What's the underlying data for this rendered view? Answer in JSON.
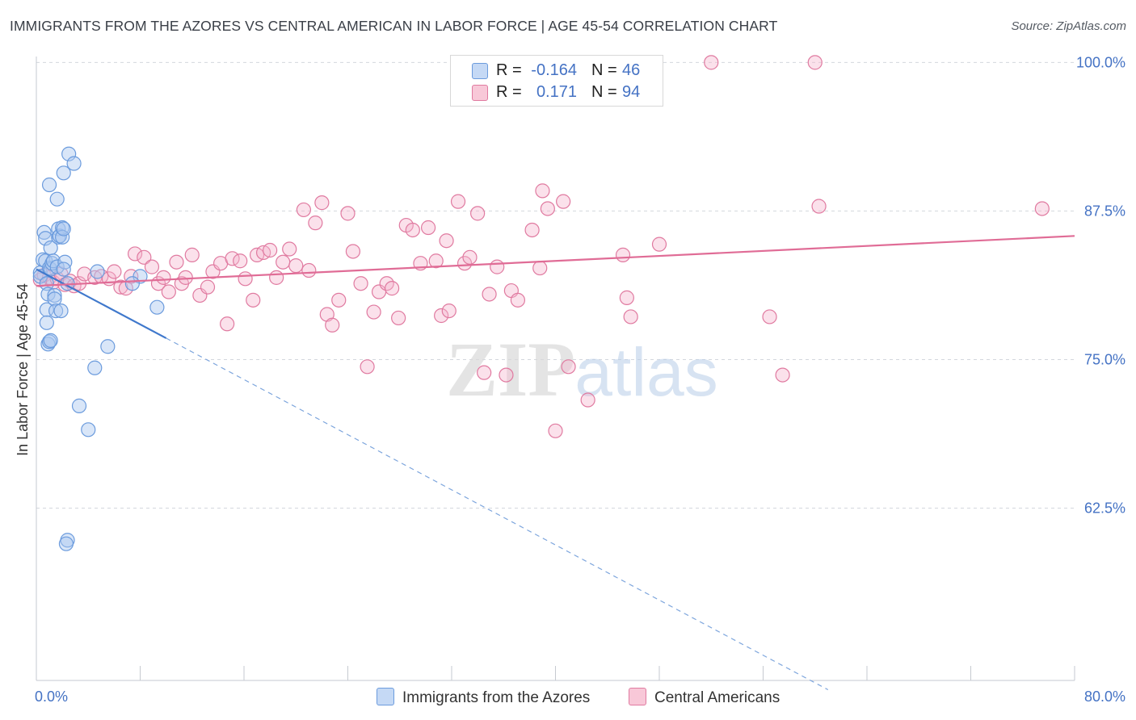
{
  "title": "IMMIGRANTS FROM THE AZORES VS CENTRAL AMERICAN IN LABOR FORCE | AGE 45-54 CORRELATION CHART",
  "source": "Source: ZipAtlas.com",
  "watermark": {
    "zip": "ZIP",
    "atlas": "atlas"
  },
  "legend": {
    "r_label": "R =",
    "n_label": "N =",
    "items": [
      {
        "name": "Immigrants from the Azores",
        "r": "-0.164",
        "n": "46",
        "color": "#6b9bdd",
        "fill": "#c5d9f5"
      },
      {
        "name": "Central Americans",
        "r": "0.171",
        "n": "94",
        "color": "#e07aa0",
        "fill": "#f8c8d8"
      }
    ]
  },
  "chart_data": {
    "type": "scatter",
    "xlabel": "",
    "ylabel": "In Labor Force | Age 45-54",
    "xlim": [
      0,
      80
    ],
    "ylim": [
      48,
      100.5
    ],
    "x_tick_labels": {
      "min": "0.0%",
      "max": "80.0%"
    },
    "y_ticks": [
      {
        "value": 100,
        "label": "100.0%"
      },
      {
        "value": 87.5,
        "label": "87.5%"
      },
      {
        "value": 75,
        "label": "75.0%"
      },
      {
        "value": 62.5,
        "label": "62.5%"
      }
    ],
    "series": [
      {
        "name": "Immigrants from the Azores",
        "color": "#6b9bdd",
        "trend": {
          "x0": 0,
          "y0": 82.6,
          "x1": 10,
          "y1": 76.8,
          "dash_to_x": 61
        },
        "points": [
          [
            0.3,
            82.3
          ],
          [
            0.3,
            82.0
          ],
          [
            0.5,
            83.4
          ],
          [
            0.6,
            85.7
          ],
          [
            0.7,
            85.2
          ],
          [
            0.7,
            83.3
          ],
          [
            0.8,
            81.4
          ],
          [
            0.8,
            79.2
          ],
          [
            0.8,
            78.1
          ],
          [
            0.9,
            76.3
          ],
          [
            0.9,
            80.5
          ],
          [
            1.0,
            82.7
          ],
          [
            1.1,
            84.4
          ],
          [
            1.1,
            82.6
          ],
          [
            1.2,
            83.1
          ],
          [
            1.3,
            83.3
          ],
          [
            1.4,
            80.4
          ],
          [
            1.4,
            80.1
          ],
          [
            1.5,
            79.1
          ],
          [
            1.6,
            82.8
          ],
          [
            1.7,
            86.0
          ],
          [
            1.7,
            85.3
          ],
          [
            1.8,
            85.4
          ],
          [
            1.9,
            79.1
          ],
          [
            2.0,
            86.1
          ],
          [
            2.0,
            85.3
          ],
          [
            1.0,
            76.5
          ],
          [
            1.1,
            76.6
          ],
          [
            1.0,
            89.7
          ],
          [
            1.6,
            88.5
          ],
          [
            2.1,
            86.0
          ],
          [
            2.2,
            83.2
          ],
          [
            2.1,
            82.6
          ],
          [
            2.1,
            90.7
          ],
          [
            2.5,
            92.3
          ],
          [
            2.9,
            91.5
          ],
          [
            2.4,
            81.4
          ],
          [
            3.3,
            71.1
          ],
          [
            4.0,
            69.1
          ],
          [
            4.5,
            74.3
          ],
          [
            5.5,
            76.1
          ],
          [
            4.7,
            82.4
          ],
          [
            8.0,
            82.0
          ],
          [
            7.4,
            81.4
          ],
          [
            9.3,
            79.4
          ],
          [
            2.4,
            59.8
          ],
          [
            2.3,
            59.5
          ]
        ]
      },
      {
        "name": "Central Americans",
        "color": "#e07aa0",
        "trend": {
          "x0": 0,
          "y0": 81.2,
          "x1": 80,
          "y1": 85.4
        },
        "points": [
          [
            0.3,
            81.7
          ],
          [
            0.6,
            82.1
          ],
          [
            1.0,
            81.9
          ],
          [
            1.3,
            81.5
          ],
          [
            1.6,
            81.8
          ],
          [
            1.9,
            82.2
          ],
          [
            2.2,
            81.3
          ],
          [
            2.6,
            81.6
          ],
          [
            2.9,
            81.2
          ],
          [
            3.3,
            81.4
          ],
          [
            3.7,
            82.2
          ],
          [
            4.5,
            81.9
          ],
          [
            5.0,
            82.0
          ],
          [
            5.6,
            81.8
          ],
          [
            6.0,
            82.4
          ],
          [
            6.5,
            81.1
          ],
          [
            6.9,
            81.0
          ],
          [
            7.3,
            82.0
          ],
          [
            7.6,
            83.9
          ],
          [
            8.3,
            83.6
          ],
          [
            8.9,
            82.8
          ],
          [
            9.4,
            81.4
          ],
          [
            9.8,
            81.9
          ],
          [
            10.2,
            80.7
          ],
          [
            10.8,
            83.2
          ],
          [
            11.2,
            81.4
          ],
          [
            11.5,
            81.9
          ],
          [
            12.0,
            83.8
          ],
          [
            12.6,
            80.4
          ],
          [
            13.2,
            81.1
          ],
          [
            13.6,
            82.4
          ],
          [
            14.2,
            83.1
          ],
          [
            14.7,
            78.0
          ],
          [
            15.1,
            83.5
          ],
          [
            15.7,
            83.3
          ],
          [
            16.1,
            81.8
          ],
          [
            16.7,
            80.0
          ],
          [
            17.0,
            83.8
          ],
          [
            17.5,
            84.0
          ],
          [
            18.0,
            84.2
          ],
          [
            18.5,
            81.9
          ],
          [
            19.0,
            83.2
          ],
          [
            19.5,
            84.3
          ],
          [
            20.0,
            82.9
          ],
          [
            20.6,
            87.6
          ],
          [
            21.0,
            82.5
          ],
          [
            21.5,
            86.5
          ],
          [
            22.0,
            88.2
          ],
          [
            22.4,
            78.8
          ],
          [
            22.8,
            77.9
          ],
          [
            23.3,
            80.0
          ],
          [
            24.0,
            87.3
          ],
          [
            24.4,
            84.1
          ],
          [
            25.0,
            81.4
          ],
          [
            25.5,
            74.4
          ],
          [
            26.0,
            79.0
          ],
          [
            26.4,
            80.7
          ],
          [
            27.0,
            81.4
          ],
          [
            27.4,
            81.0
          ],
          [
            27.9,
            78.5
          ],
          [
            28.5,
            86.3
          ],
          [
            29.0,
            85.9
          ],
          [
            29.6,
            83.1
          ],
          [
            30.2,
            86.1
          ],
          [
            30.8,
            83.3
          ],
          [
            31.2,
            78.7
          ],
          [
            31.6,
            85.0
          ],
          [
            31.8,
            79.1
          ],
          [
            32.5,
            88.3
          ],
          [
            33.0,
            83.1
          ],
          [
            33.4,
            83.6
          ],
          [
            34.0,
            87.3
          ],
          [
            34.5,
            73.9
          ],
          [
            34.9,
            80.5
          ],
          [
            35.5,
            82.8
          ],
          [
            36.2,
            73.7
          ],
          [
            36.6,
            80.8
          ],
          [
            37.1,
            80.0
          ],
          [
            38.2,
            85.9
          ],
          [
            38.8,
            82.7
          ],
          [
            39.0,
            89.2
          ],
          [
            39.4,
            87.7
          ],
          [
            40.0,
            69.0
          ],
          [
            40.6,
            88.3
          ],
          [
            41.0,
            74.4
          ],
          [
            42.5,
            71.6
          ],
          [
            43.5,
            100.0
          ],
          [
            45.5,
            80.2
          ],
          [
            45.8,
            78.6
          ],
          [
            45.2,
            83.8
          ],
          [
            48.0,
            84.7
          ],
          [
            52.0,
            100.0
          ],
          [
            56.5,
            78.6
          ],
          [
            57.5,
            73.7
          ],
          [
            60.0,
            100.0
          ],
          [
            60.3,
            87.9
          ],
          [
            77.5,
            87.7
          ]
        ]
      }
    ]
  }
}
